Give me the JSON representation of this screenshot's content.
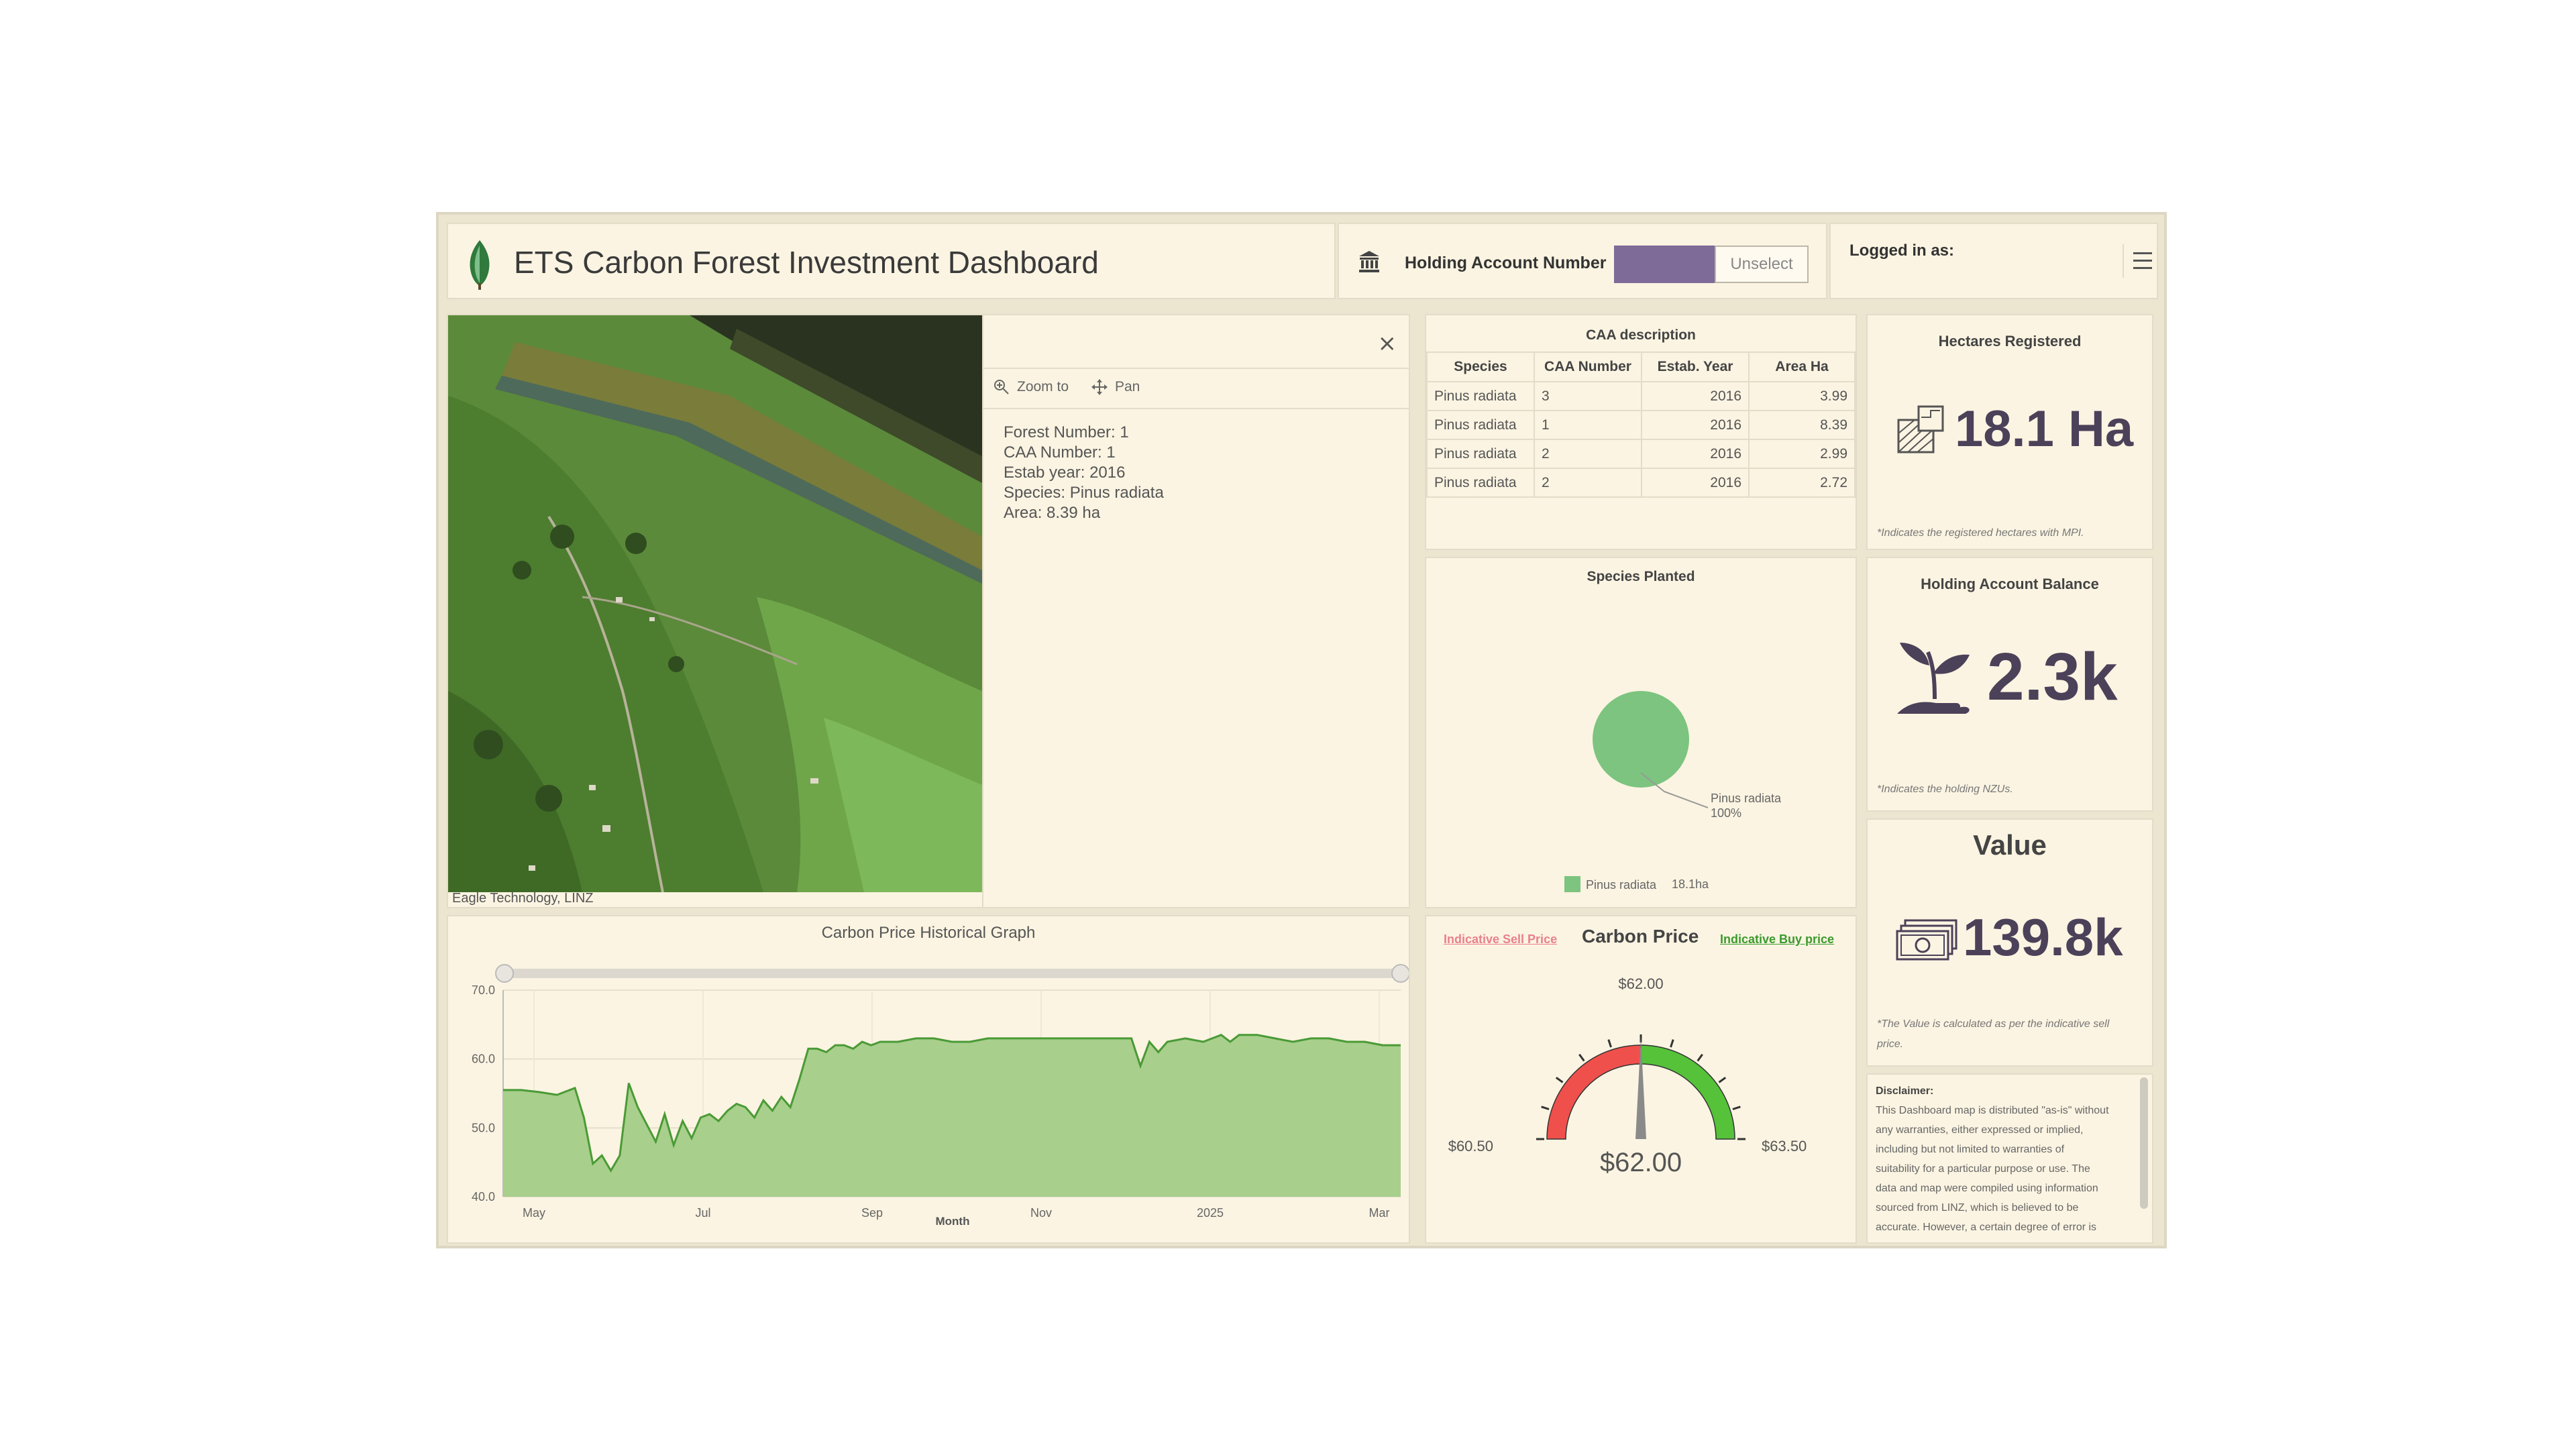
{
  "header": {
    "title": "ETS Carbon Forest Investment Dashboard",
    "account_label": "Holding Account Number",
    "unselect_label": "Unselect",
    "logged_in_label": "Logged in as:"
  },
  "map": {
    "attribution": "Eagle Technology, LINZ",
    "popup": {
      "zoom_label": "Zoom to",
      "pan_label": "Pan",
      "lines": [
        "Forest Number: 1",
        "CAA Number: 1",
        "Estab year: 2016",
        "Species: Pinus radiata",
        "Area: 8.39 ha"
      ]
    }
  },
  "caa_table": {
    "title": "CAA description",
    "columns": [
      "Species",
      "CAA Number",
      "Estab. Year",
      "Area Ha"
    ],
    "rows": [
      [
        "Pinus radiata",
        "3",
        "2016",
        "3.99"
      ],
      [
        "Pinus radiata",
        "1",
        "2016",
        "8.39"
      ],
      [
        "Pinus radiata",
        "2",
        "2016",
        "2.99"
      ],
      [
        "Pinus radiata",
        "2",
        "2016",
        "2.72"
      ]
    ]
  },
  "species": {
    "title": "Species Planted",
    "slice_label": "Pinus radiata",
    "slice_pct": "100%",
    "legend_label": "Pinus radiata",
    "legend_value": "18.1ha",
    "color": "#7cc47f"
  },
  "hectares": {
    "title": "Hectares Registered",
    "value": "18.1 Ha",
    "note": "*Indicates the registered hectares with MPI."
  },
  "balance": {
    "title": "Holding Account Balance",
    "value": "2.3k",
    "note": "*Indicates the holding NZUs."
  },
  "value_card": {
    "title": "Value",
    "value": "139.8k",
    "note_lines": [
      "*The Value is calculated as per the indicative sell",
      "price."
    ]
  },
  "disclaimer": {
    "heading": "Disclaimer:",
    "lines": [
      "This Dashboard map is distributed \"as-is\" without",
      "any warranties, either expressed or implied,",
      "including but not limited to warranties of",
      "suitability for a particular purpose or use. The",
      "data and map were compiled using information",
      "sourced from LINZ, which is believed to be",
      "accurate. However, a certain degree of error is"
    ]
  },
  "gauge": {
    "title": "Carbon Price",
    "sell_link": "Indicative Sell Price",
    "buy_link": "Indicative Buy price",
    "min_label": "$60.50",
    "max_label": "$63.50",
    "top_label": "$62.00",
    "value_label": "$62.00",
    "min": 60.5,
    "max": 63.5,
    "value": 62.0
  },
  "chart_data": {
    "type": "area",
    "title": "Carbon Price Historical Graph",
    "xlabel": "Month",
    "ylabel": "",
    "x_ticks": [
      "May",
      "Jul",
      "Sep",
      "Nov",
      "2025",
      "Mar"
    ],
    "y_ticks": [
      "70.0",
      "60.0",
      "50.0",
      "40.0"
    ],
    "ylim": [
      40,
      70
    ],
    "grid": true,
    "series": [
      {
        "color": "#4a9a36",
        "fill": "#a8cf8c",
        "x": [
          0,
          0.02,
          0.04,
          0.06,
          0.08,
          0.09,
          0.1,
          0.11,
          0.12,
          0.13,
          0.14,
          0.15,
          0.16,
          0.17,
          0.18,
          0.19,
          0.2,
          0.21,
          0.22,
          0.23,
          0.24,
          0.25,
          0.26,
          0.27,
          0.28,
          0.29,
          0.3,
          0.31,
          0.32,
          0.33,
          0.34,
          0.35,
          0.36,
          0.37,
          0.38,
          0.39,
          0.4,
          0.41,
          0.42,
          0.44,
          0.46,
          0.48,
          0.5,
          0.52,
          0.54,
          0.56,
          0.58,
          0.6,
          0.62,
          0.64,
          0.66,
          0.68,
          0.7,
          0.71,
          0.72,
          0.73,
          0.74,
          0.76,
          0.78,
          0.8,
          0.81,
          0.82,
          0.84,
          0.86,
          0.88,
          0.9,
          0.92,
          0.94,
          0.96,
          0.98,
          1.0
        ],
        "values": [
          55.5,
          55.5,
          55.2,
          54.8,
          55.8,
          51.5,
          44.8,
          46,
          43.8,
          46,
          56.5,
          53,
          50.5,
          48,
          52,
          47.5,
          51,
          48.5,
          51.5,
          52,
          51,
          52.5,
          53.5,
          53,
          51.5,
          54,
          52.5,
          54.5,
          53,
          57,
          61.5,
          61.5,
          61,
          62,
          62,
          61.5,
          62.5,
          62,
          62.5,
          62.5,
          63,
          63,
          62.5,
          62.5,
          63,
          63,
          63,
          63,
          63,
          63,
          63,
          63,
          63,
          59,
          62.5,
          61,
          62.5,
          63,
          62.5,
          63.5,
          62.5,
          63.5,
          63.5,
          63,
          62.5,
          63,
          63,
          62.5,
          62.5,
          62,
          62
        ]
      }
    ]
  }
}
